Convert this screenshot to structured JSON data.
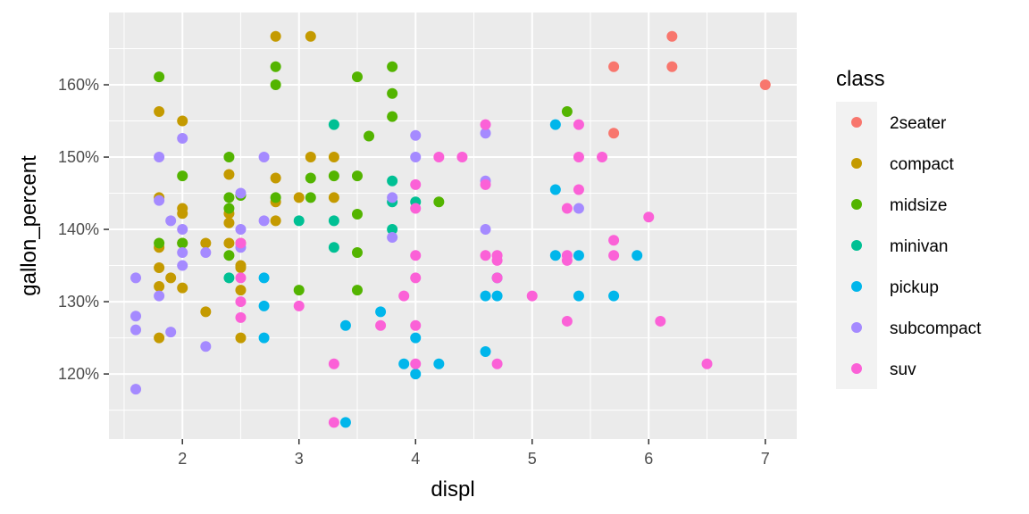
{
  "chart_data": {
    "type": "scatter",
    "xlabel": "displ",
    "ylabel": "gallon_percent",
    "xlim": [
      1.37,
      7.27
    ],
    "ylim": [
      111,
      170
    ],
    "x_ticks": [
      2,
      3,
      4,
      5,
      6,
      7
    ],
    "x_tick_labels": [
      "2",
      "3",
      "4",
      "5",
      "6",
      "7"
    ],
    "y_ticks": [
      120,
      130,
      140,
      150,
      160
    ],
    "y_tick_labels": [
      "120%",
      "130%",
      "140%",
      "150%",
      "160%"
    ],
    "grid": true,
    "legend": {
      "title": "class",
      "position": "right"
    },
    "series": [
      {
        "name": "2seater",
        "color": "#F8766D",
        "points": [
          [
            5.7,
            153.3
          ],
          [
            5.7,
            162.5
          ],
          [
            6.2,
            166.7
          ],
          [
            6.2,
            162.5
          ],
          [
            7.0,
            160.0
          ]
        ]
      },
      {
        "name": "compact",
        "color": "#C49A00",
        "points": [
          [
            1.8,
            156.3
          ],
          [
            1.8,
            144.4
          ],
          [
            1.8,
            137.5
          ],
          [
            1.8,
            134.7
          ],
          [
            1.8,
            132.1
          ],
          [
            1.8,
            125.0
          ],
          [
            1.9,
            133.3
          ],
          [
            2.0,
            155.0
          ],
          [
            2.0,
            142.9
          ],
          [
            2.0,
            142.2
          ],
          [
            2.0,
            138.1
          ],
          [
            2.0,
            131.9
          ],
          [
            2.2,
            138.1
          ],
          [
            2.2,
            128.6
          ],
          [
            2.4,
            147.6
          ],
          [
            2.4,
            142.2
          ],
          [
            2.4,
            140.9
          ],
          [
            2.4,
            138.1
          ],
          [
            2.5,
            138.1
          ],
          [
            2.5,
            135.0
          ],
          [
            2.5,
            134.7
          ],
          [
            2.5,
            131.6
          ],
          [
            2.5,
            125.0
          ],
          [
            2.8,
            166.7
          ],
          [
            2.8,
            147.1
          ],
          [
            2.8,
            143.8
          ],
          [
            2.8,
            141.2
          ],
          [
            3.0,
            144.4
          ],
          [
            3.1,
            166.7
          ],
          [
            3.1,
            150.0
          ],
          [
            3.3,
            150.0
          ],
          [
            3.3,
            144.4
          ]
        ]
      },
      {
        "name": "midsize",
        "color": "#53B400",
        "points": [
          [
            1.8,
            161.1
          ],
          [
            1.8,
            138.1
          ],
          [
            2.0,
            147.4
          ],
          [
            2.0,
            138.1
          ],
          [
            2.4,
            150.0
          ],
          [
            2.4,
            144.4
          ],
          [
            2.4,
            142.9
          ],
          [
            2.4,
            136.4
          ],
          [
            2.5,
            144.7
          ],
          [
            2.8,
            162.5
          ],
          [
            2.8,
            160.0
          ],
          [
            2.8,
            144.4
          ],
          [
            3.0,
            131.6
          ],
          [
            3.1,
            147.1
          ],
          [
            3.1,
            144.4
          ],
          [
            3.3,
            147.4
          ],
          [
            3.5,
            161.1
          ],
          [
            3.5,
            147.4
          ],
          [
            3.5,
            142.1
          ],
          [
            3.5,
            136.8
          ],
          [
            3.5,
            131.6
          ],
          [
            3.6,
            152.9
          ],
          [
            3.8,
            162.5
          ],
          [
            3.8,
            158.8
          ],
          [
            3.8,
            155.6
          ],
          [
            4.2,
            143.8
          ],
          [
            5.3,
            156.3
          ]
        ]
      },
      {
        "name": "minivan",
        "color": "#00C094",
        "points": [
          [
            2.4,
            133.3
          ],
          [
            3.0,
            141.2
          ],
          [
            3.3,
            154.5
          ],
          [
            3.3,
            141.2
          ],
          [
            3.3,
            137.5
          ],
          [
            3.8,
            146.7
          ],
          [
            3.8,
            143.8
          ],
          [
            3.8,
            140.0
          ],
          [
            4.0,
            143.8
          ]
        ]
      },
      {
        "name": "pickup",
        "color": "#00B6EB",
        "points": [
          [
            2.7,
            133.3
          ],
          [
            2.7,
            129.4
          ],
          [
            2.7,
            125.0
          ],
          [
            3.4,
            126.7
          ],
          [
            3.4,
            113.3
          ],
          [
            3.7,
            128.6
          ],
          [
            3.9,
            121.4
          ],
          [
            4.0,
            125.0
          ],
          [
            4.0,
            120.0
          ],
          [
            4.2,
            121.4
          ],
          [
            4.6,
            130.8
          ],
          [
            4.6,
            123.1
          ],
          [
            4.7,
            133.3
          ],
          [
            4.7,
            130.8
          ],
          [
            5.2,
            154.5
          ],
          [
            5.2,
            145.5
          ],
          [
            5.2,
            136.4
          ],
          [
            5.4,
            136.4
          ],
          [
            5.4,
            130.8
          ],
          [
            5.7,
            130.8
          ],
          [
            5.9,
            136.4
          ]
        ]
      },
      {
        "name": "subcompact",
        "color": "#A58AFF",
        "points": [
          [
            1.6,
            133.3
          ],
          [
            1.6,
            128.0
          ],
          [
            1.6,
            126.1
          ],
          [
            1.6,
            117.9
          ],
          [
            1.8,
            150.0
          ],
          [
            1.8,
            144.0
          ],
          [
            1.8,
            130.8
          ],
          [
            1.9,
            141.2
          ],
          [
            1.9,
            125.8
          ],
          [
            2.0,
            152.6
          ],
          [
            2.0,
            140.0
          ],
          [
            2.0,
            136.8
          ],
          [
            2.0,
            135.0
          ],
          [
            2.2,
            136.8
          ],
          [
            2.2,
            123.8
          ],
          [
            2.5,
            145.0
          ],
          [
            2.5,
            140.0
          ],
          [
            2.5,
            137.5
          ],
          [
            2.7,
            150.0
          ],
          [
            2.7,
            141.2
          ],
          [
            3.8,
            144.4
          ],
          [
            3.8,
            138.9
          ],
          [
            4.0,
            153.0
          ],
          [
            4.0,
            150.0
          ],
          [
            4.6,
            153.3
          ],
          [
            4.6,
            146.7
          ],
          [
            4.6,
            140.0
          ],
          [
            5.4,
            142.9
          ]
        ]
      },
      {
        "name": "suv",
        "color": "#FB61D7",
        "points": [
          [
            2.5,
            138.1
          ],
          [
            2.5,
            133.3
          ],
          [
            2.5,
            130.0
          ],
          [
            2.5,
            127.8
          ],
          [
            3.0,
            129.4
          ],
          [
            3.3,
            121.4
          ],
          [
            3.3,
            113.3
          ],
          [
            3.7,
            126.7
          ],
          [
            3.9,
            130.8
          ],
          [
            4.0,
            146.2
          ],
          [
            4.0,
            142.9
          ],
          [
            4.0,
            136.4
          ],
          [
            4.0,
            133.3
          ],
          [
            4.0,
            126.7
          ],
          [
            4.0,
            121.4
          ],
          [
            4.2,
            150.0
          ],
          [
            4.4,
            150.0
          ],
          [
            4.6,
            154.5
          ],
          [
            4.6,
            146.2
          ],
          [
            4.6,
            136.4
          ],
          [
            4.7,
            136.4
          ],
          [
            4.7,
            135.7
          ],
          [
            4.7,
            133.3
          ],
          [
            4.7,
            121.4
          ],
          [
            5.0,
            130.8
          ],
          [
            5.3,
            142.9
          ],
          [
            5.3,
            136.4
          ],
          [
            5.3,
            135.7
          ],
          [
            5.3,
            127.3
          ],
          [
            5.4,
            154.5
          ],
          [
            5.4,
            150.0
          ],
          [
            5.4,
            145.5
          ],
          [
            5.6,
            150.0
          ],
          [
            5.7,
            138.5
          ],
          [
            5.7,
            136.4
          ],
          [
            6.0,
            141.7
          ],
          [
            6.1,
            127.3
          ],
          [
            6.5,
            121.4
          ]
        ]
      }
    ]
  }
}
